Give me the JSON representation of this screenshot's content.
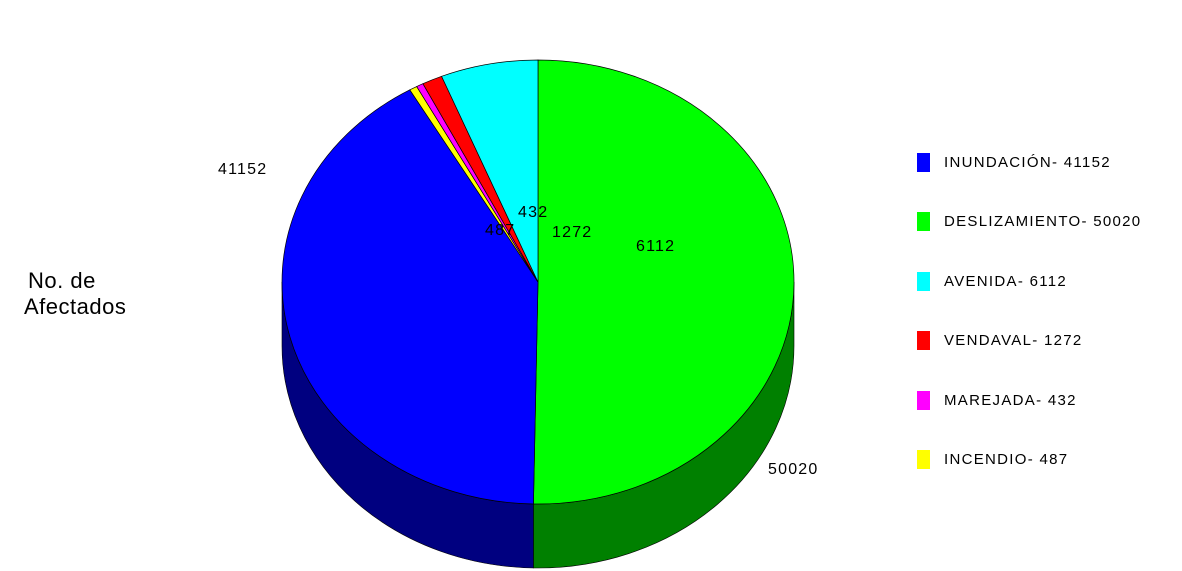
{
  "ylabel_line1": "No. de",
  "ylabel_line2": "Afectados",
  "chart_data": {
    "type": "pie",
    "title": "",
    "ylabel": "No. de Afectados",
    "start_angle_deg": 90,
    "direction": "clockwise",
    "slices": [
      {
        "key": "deslizamiento",
        "label": "DESLIZAMIENTO",
        "value": 50020,
        "color": "#00ff00",
        "side_color": "#008000",
        "legend": "DESLIZAMIENTO- 50020",
        "data_label": "50020"
      },
      {
        "key": "inundacion",
        "label": "INUNDACIÓN",
        "value": 41152,
        "color": "#0000ff",
        "side_color": "#000080",
        "legend": "INUNDACIÓN- 41152",
        "data_label": "41152"
      },
      {
        "key": "incendio",
        "label": "INCENDIO",
        "value": 487,
        "color": "#ffff00",
        "side_color": "#808000",
        "legend": "INCENDIO- 487",
        "data_label": "487"
      },
      {
        "key": "marejada",
        "label": "MAREJADA",
        "value": 432,
        "color": "#ff00ff",
        "side_color": "#800080",
        "legend": "MAREJADA- 432",
        "data_label": "432"
      },
      {
        "key": "vendaval",
        "label": "VENDAVAL",
        "value": 1272,
        "color": "#ff0000",
        "side_color": "#800000",
        "legend": "VENDAVAL- 1272",
        "data_label": "1272"
      },
      {
        "key": "avenida",
        "label": "AVENIDA",
        "value": 6112,
        "color": "#00ffff",
        "side_color": "#008080",
        "legend": "AVENIDA- 6112",
        "data_label": "6112"
      }
    ],
    "legend_order": [
      "inundacion",
      "deslizamiento",
      "avenida",
      "vendaval",
      "marejada",
      "incendio"
    ],
    "legend_position": "right",
    "style": "3d-pie"
  }
}
